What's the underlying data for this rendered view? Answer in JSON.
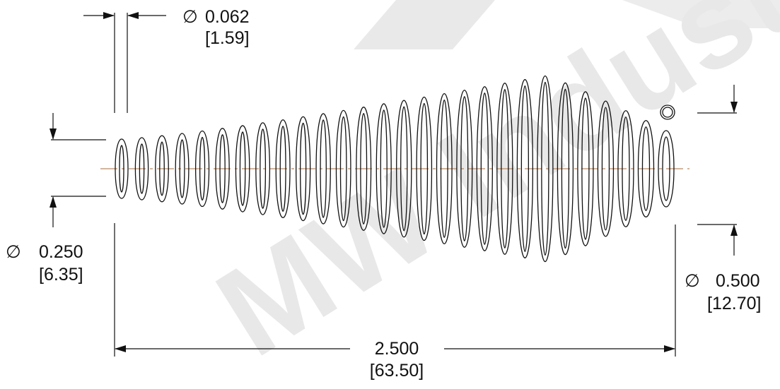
{
  "watermark": {
    "text": "MW Industries",
    "color": "#e6e6e6"
  },
  "spring": {
    "coil_color": "#111111",
    "centerline_color": "#b98a66",
    "coil_count": 28
  },
  "dimensions": {
    "wire_diameter": {
      "symbol": "∅",
      "inch": "0.062",
      "mm": "[1.59]"
    },
    "small_end_diameter": {
      "symbol": "∅",
      "inch": "0.250",
      "mm": "[6.35]"
    },
    "large_end_diameter": {
      "symbol": "∅",
      "inch": "0.500",
      "mm": "[12.70]"
    },
    "free_length": {
      "inch": "2.500",
      "mm": "[63.50]"
    }
  }
}
